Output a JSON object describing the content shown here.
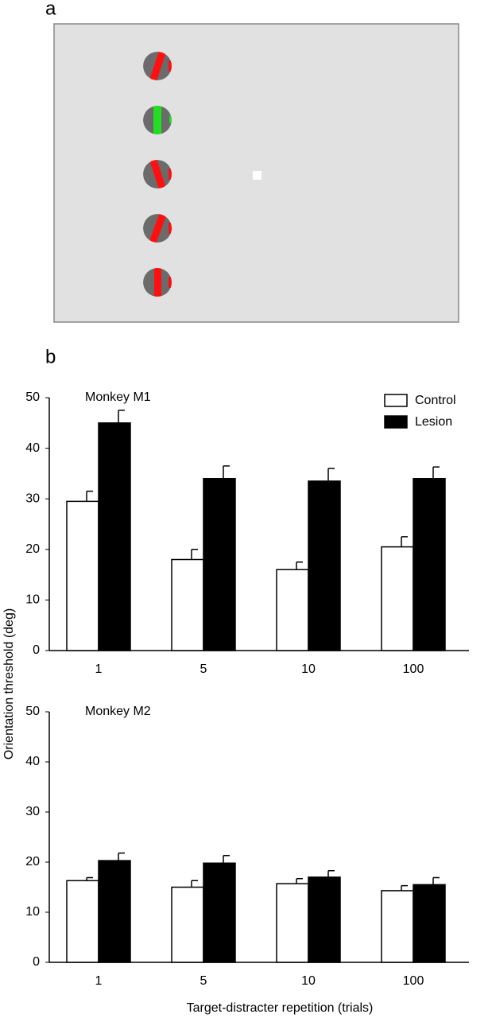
{
  "panels": [
    "a",
    "b"
  ],
  "chart_data": [
    {
      "type": "bar",
      "title": "Monkey M1",
      "ylabel": "Orientation threshold (deg)",
      "categories": [
        "1",
        "5",
        "10",
        "100"
      ],
      "series": [
        {
          "name": "Control",
          "color": "#ffffff",
          "values": [
            29.5,
            18,
            16,
            20.5
          ],
          "errors": [
            2,
            2,
            1.5,
            2
          ]
        },
        {
          "name": "Lesion",
          "color": "#000000",
          "values": [
            45,
            34,
            33.5,
            34
          ],
          "errors": [
            2.5,
            2.5,
            2.5,
            2.3
          ]
        }
      ],
      "ylim": [
        0,
        50
      ],
      "yticks": [
        0,
        10,
        20,
        30,
        40,
        50
      ],
      "legend": "upper right"
    },
    {
      "type": "bar",
      "title": "Monkey M2",
      "xlabel": "Target-distracter repetition (trials)",
      "categories": [
        "1",
        "5",
        "10",
        "100"
      ],
      "series": [
        {
          "color": "#ffffff",
          "values": [
            16.3,
            15,
            15.7,
            14.3
          ],
          "errors": [
            0.6,
            1.3,
            1,
            1
          ]
        },
        {
          "color": "#000000",
          "values": [
            20.3,
            19.8,
            17,
            15.5
          ],
          "errors": [
            1.5,
            1.5,
            1.3,
            1.4
          ]
        }
      ],
      "ylim": [
        0,
        50
      ],
      "yticks": [
        0,
        10,
        20,
        30,
        40,
        50
      ]
    }
  ]
}
